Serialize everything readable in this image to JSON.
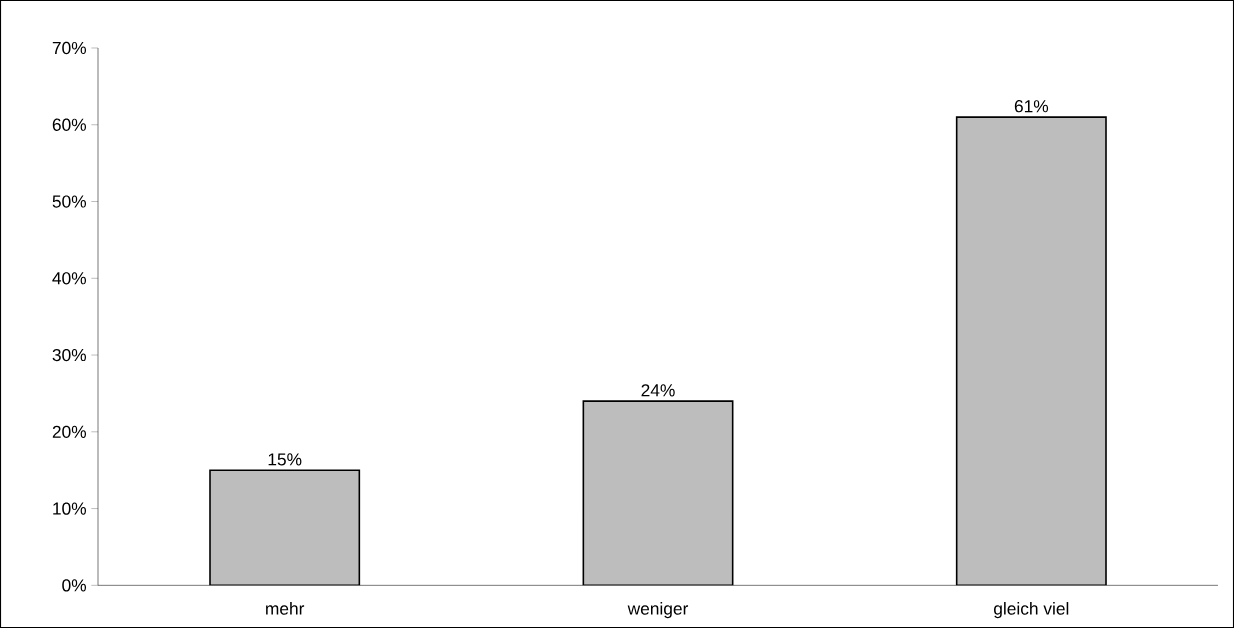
{
  "chart_data": {
    "type": "bar",
    "categories": [
      "mehr",
      "weniger",
      "gleich viel"
    ],
    "values": [
      15,
      24,
      61
    ],
    "value_labels": [
      "15%",
      "24%",
      "61%"
    ],
    "color": "#bdbdbd",
    "ylim": [
      0,
      70
    ],
    "yticks": [
      {
        "value": 0,
        "label": "0%"
      },
      {
        "value": 10,
        "label": "10%"
      },
      {
        "value": 20,
        "label": "20%"
      },
      {
        "value": 30,
        "label": "30%"
      },
      {
        "value": 40,
        "label": "40%"
      },
      {
        "value": 50,
        "label": "50%"
      },
      {
        "value": 60,
        "label": "60%"
      },
      {
        "value": 70,
        "label": "70%"
      }
    ],
    "grid": false
  }
}
